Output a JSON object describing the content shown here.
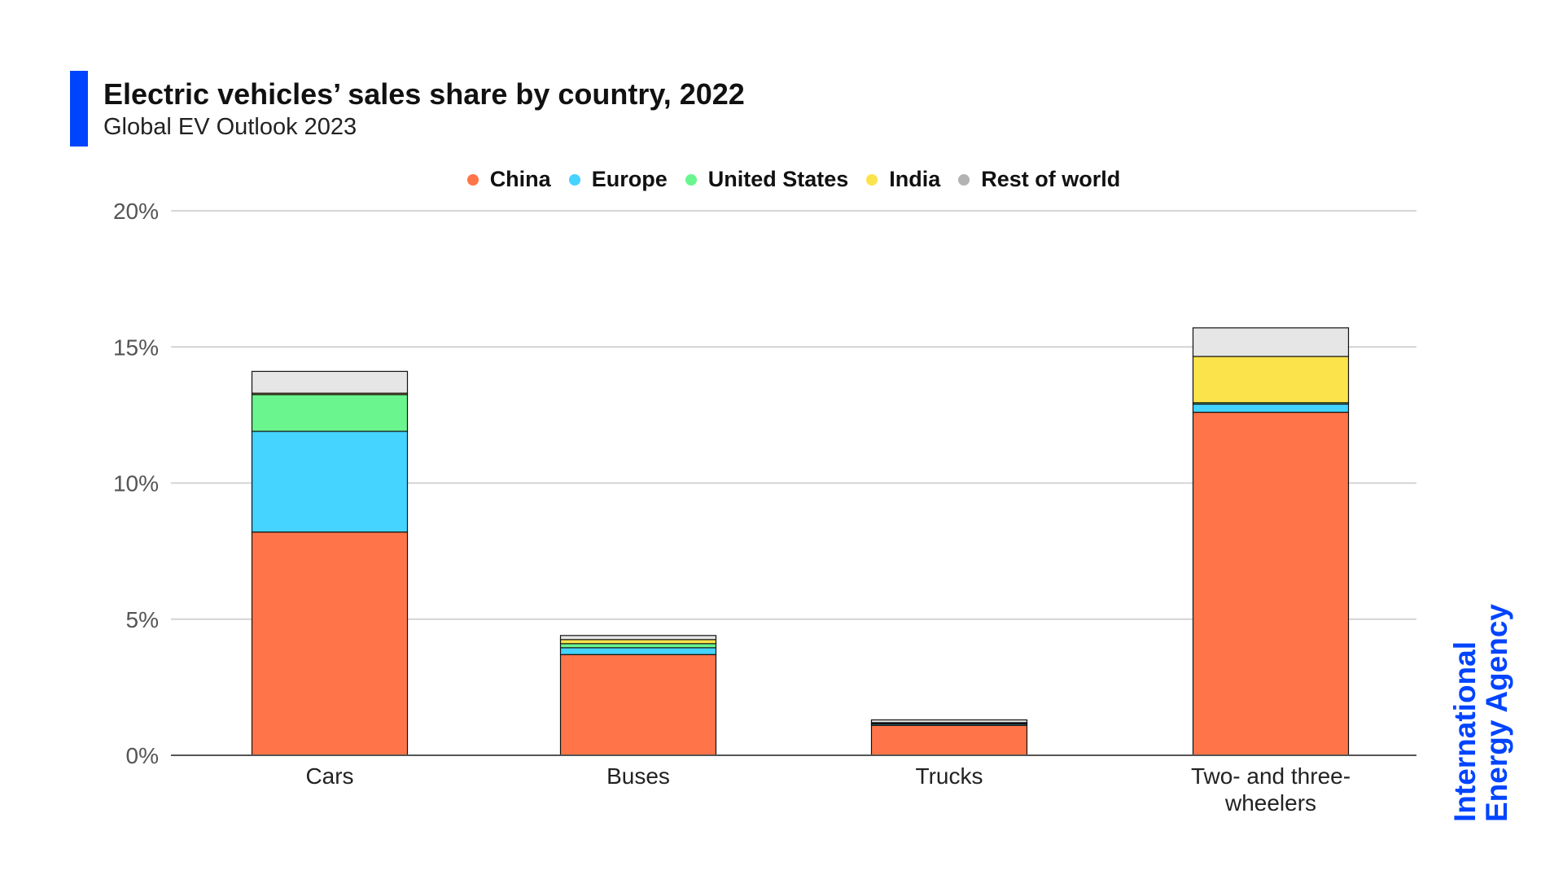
{
  "header": {
    "title": "Electric vehicles’ sales share by country, 2022",
    "subtitle": "Global EV Outlook 2023"
  },
  "logo": {
    "line1": "International",
    "line2": "Energy Agency",
    "color": "#0044ff"
  },
  "colors": {
    "accent": "#0044ff",
    "gridline": "#c8c8c8",
    "axis": "#555555",
    "bar_outline": "#111111"
  },
  "chart_data": {
    "type": "bar",
    "stacked": true,
    "title": "Electric vehicles’ sales share by country, 2022",
    "subtitle": "Global EV Outlook 2023",
    "xlabel": "",
    "ylabel": "",
    "categories": [
      "Cars",
      "Buses",
      "Trucks",
      "Two- and three-wheelers"
    ],
    "category_lines": [
      [
        "Cars"
      ],
      [
        "Buses"
      ],
      [
        "Trucks"
      ],
      [
        "Two- and three-",
        "wheelers"
      ]
    ],
    "ylim": [
      0,
      20
    ],
    "yticks": [
      0,
      5,
      10,
      15,
      20
    ],
    "ytick_labels": [
      "0%",
      "5%",
      "10%",
      "15%",
      "20%"
    ],
    "grid": true,
    "legend_position": "top-center",
    "series": [
      {
        "name": "China",
        "color": "#ff7549",
        "values": [
          8.2,
          3.7,
          1.1,
          12.6
        ]
      },
      {
        "name": "Europe",
        "color": "#45d3ff",
        "values": [
          3.7,
          0.25,
          0.05,
          0.3
        ]
      },
      {
        "name": "United States",
        "color": "#6af58f",
        "values": [
          1.35,
          0.15,
          0.03,
          0.05
        ]
      },
      {
        "name": "India",
        "color": "#fbe34b",
        "values": [
          0.05,
          0.15,
          0.02,
          1.7
        ]
      },
      {
        "name": "Rest of world",
        "color": "#e6e6e6",
        "values": [
          0.8,
          0.15,
          0.1,
          1.05
        ]
      }
    ]
  }
}
